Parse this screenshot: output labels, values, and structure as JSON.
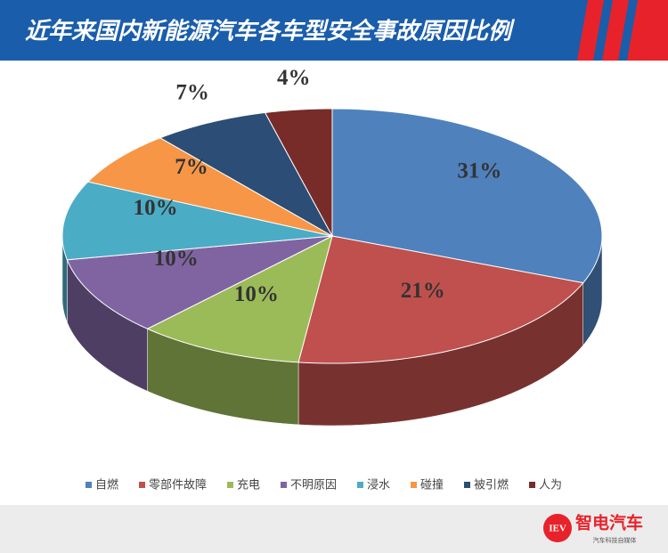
{
  "chart_data": {
    "type": "pie3d",
    "title": "近年来国内新能源汽车各车型安全事故原因比例",
    "categories": [
      "自燃",
      "零部件故障",
      "充电",
      "不明原因",
      "浸水",
      "碰撞",
      "被引燃",
      "人为"
    ],
    "values": [
      31,
      21,
      10,
      10,
      10,
      7,
      7,
      4
    ],
    "value_labels": [
      "31%",
      "21%",
      "10%",
      "10%",
      "10%",
      "7%",
      "7%",
      "4%"
    ],
    "colors": [
      "#4f81bd",
      "#c0504d",
      "#9bbb59",
      "#8064a2",
      "#4bacc6",
      "#f79646",
      "#2c4d75",
      "#772c2a"
    ],
    "legend": "bottom"
  },
  "footer": {
    "logo": "IEV",
    "brand": "智电汽车",
    "slogan": "汽车科技自媒体"
  }
}
